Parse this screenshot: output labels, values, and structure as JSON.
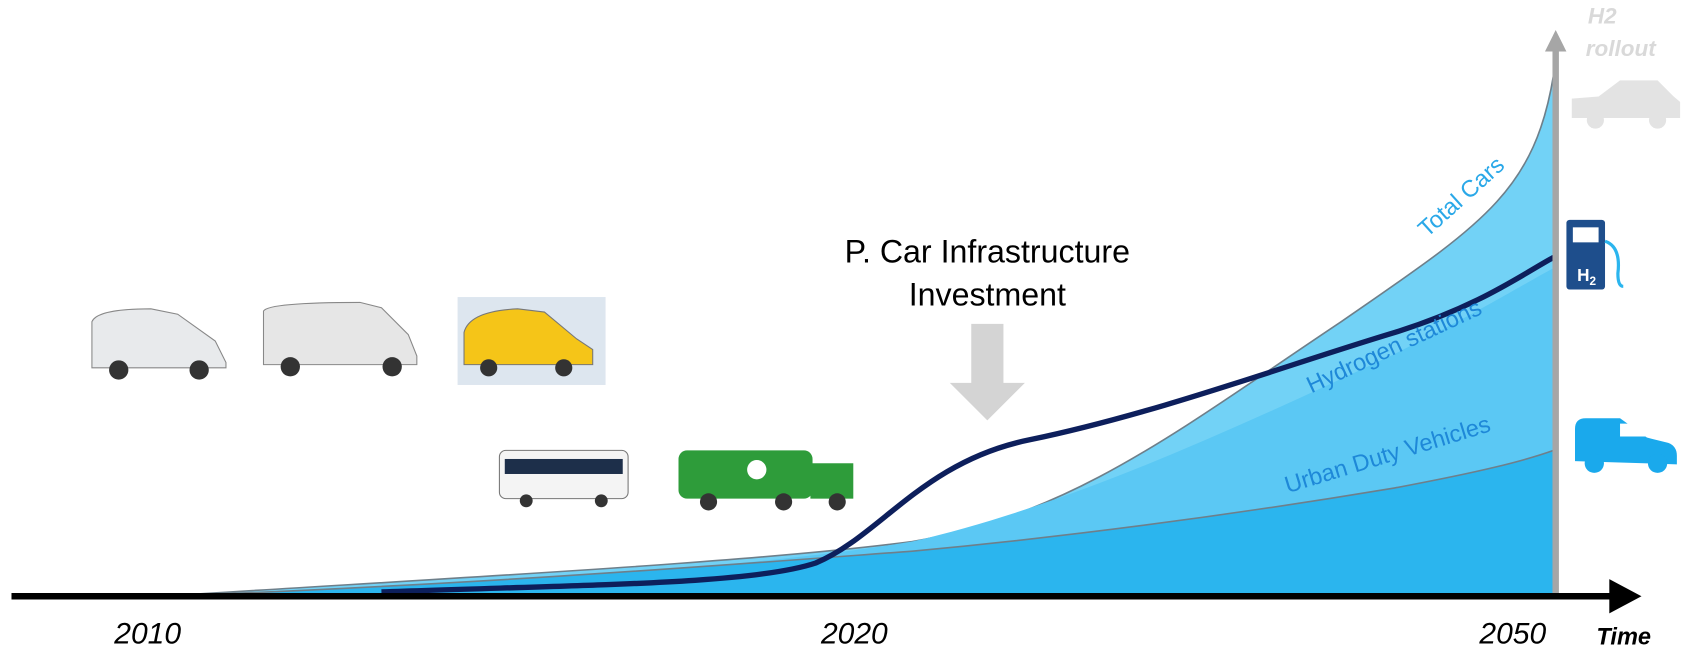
{
  "annotation": {
    "line1": "P. Car Infrastructure",
    "line2": "Investment"
  },
  "curves": {
    "total": "Total Cars",
    "hydrogen": "Hydrogen stations",
    "urban": "Urban Duty Vehicles"
  },
  "time_axis": {
    "ticks": [
      "2010",
      "2020",
      "2050"
    ],
    "label": "Time"
  },
  "rollout_axis": {
    "line1": "H2",
    "line2": "rollout"
  },
  "station_icon": {
    "main": "H",
    "sub": "2"
  }
}
